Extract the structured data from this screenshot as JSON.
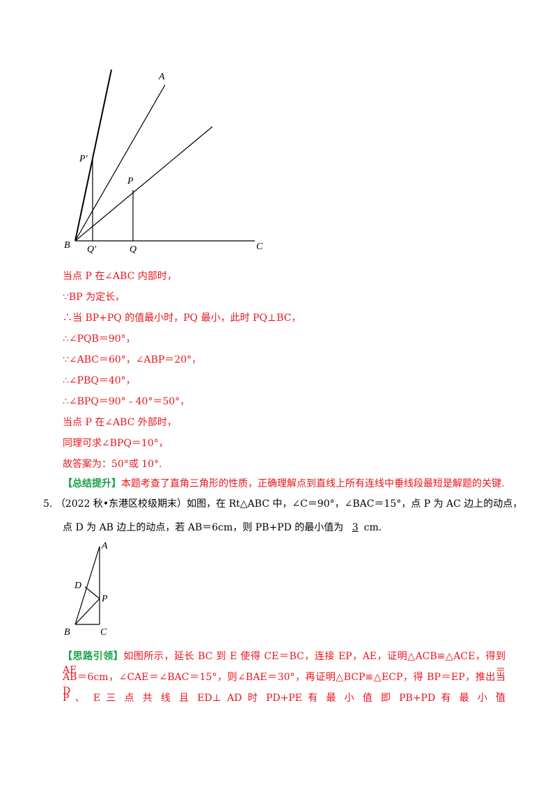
{
  "figure1": {
    "labels": {
      "A": "A",
      "P_prime": "P′",
      "P": "P",
      "B": "B",
      "Q_prime": "Q′",
      "Q": "Q",
      "C": "C"
    }
  },
  "solution_lines": [
    "当点 P 在∠ABC 内部时，",
    "∵BP 为定长，",
    "∴当 BP+PQ 的值最小时，PQ 最小，此时 PQ⊥BC，",
    "∴∠PQB＝90°，",
    "∵∠ABC＝60°，∠ABP＝20°，",
    "∴∠PBQ＝40°，",
    "∴∠BPQ＝90°﹣40°＝50°，",
    "当点 P 在∠ABC 外部时，",
    "同理可求∠BPQ＝10°，",
    "故答案为：50°或 10°."
  ],
  "summary": {
    "label": "【总结提升】",
    "text": "本题考查了直角三角形的性质，正确理解点到直线上所有连线中垂线段最短是解题的关键."
  },
  "problem": {
    "number": "5.",
    "line1": "（2022 秋•东港区校级期末）如图，在 Rt△ABC 中，∠C＝90°，∠BAC＝15°，点 P 为 AC 边上的动点，",
    "line2_prefix": "点 D 为 AB 边上的动点，若 AB＝6cm，则 PB+PD 的最小值为",
    "answer": "3",
    "line2_suffix": "cm."
  },
  "figure2": {
    "labels": {
      "A": "A",
      "D": "D",
      "P": "P",
      "B": "B",
      "C": "C"
    }
  },
  "hint": {
    "label": "【思路引领】",
    "lines": [
      "如图所示，延长 BC 到 E 使得 CE＝BC，连接 EP，AE，证明△ACB≌△ACE，得到 AE＝",
      "AB＝6cm，∠CAE＝∠BAC＝15°，则∠BAE＝30°，再证明△BCP≌△ECP，得 BP＝EP，推出当 D、",
      "P 、 E 三 点 共 线 且 ED⊥ AD 时 PD+PE 有 最 小 值 即 PB+PD 有 最 小 值"
    ]
  }
}
